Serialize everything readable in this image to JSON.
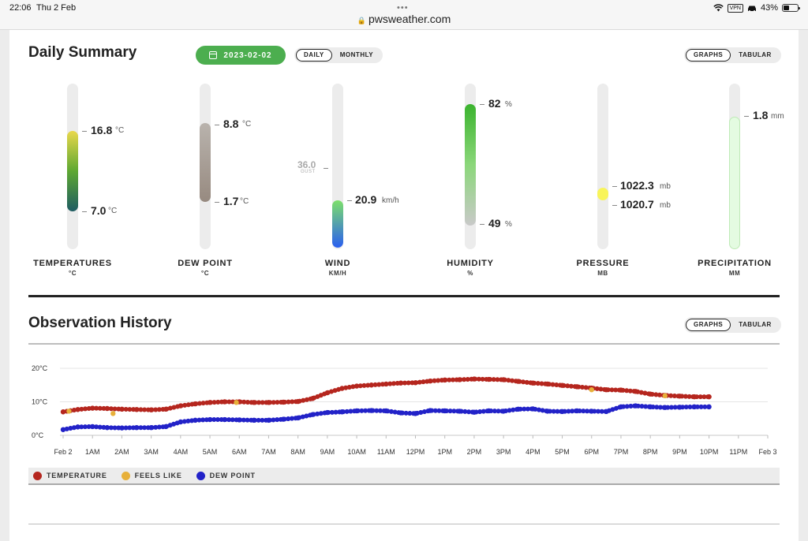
{
  "status_bar": {
    "time": "22:06",
    "date": "Thu 2 Feb",
    "dots": "•••",
    "url": "pwsweather.com",
    "vpn": "VPN",
    "battery": "43%",
    "battery_level": 0.43
  },
  "daily_summary": {
    "title": "Daily Summary",
    "date": "2023-02-02",
    "period_tabs": [
      "DAILY",
      "MONTHLY"
    ],
    "active_period": "DAILY",
    "view_tabs": [
      "GRAPHS",
      "TABULAR"
    ],
    "active_view": "GRAPHS",
    "gauges": {
      "temperature": {
        "label": "TEMPERATURES",
        "unit_label": "°C",
        "high": "16.8",
        "low": "7.0",
        "unit": "°C",
        "colors": [
          "#e9d84c",
          "#5ea832",
          "#1e5c62"
        ]
      },
      "dew_point": {
        "label": "DEW POINT",
        "unit_label": "°C",
        "high": "8.8",
        "low": "1.7",
        "unit": "°C",
        "colors": [
          "#b9b3ad",
          "#978a80"
        ]
      },
      "wind": {
        "label": "WIND",
        "unit_label": "KM/H",
        "gust": "36.0",
        "gust_label": "GUST",
        "value": "20.9",
        "unit": "km/h",
        "colors": [
          "#7de06a",
          "#2a5ff0"
        ]
      },
      "humidity": {
        "label": "HUMIDITY",
        "unit_label": "%",
        "high": "82",
        "low": "49",
        "unit": "%",
        "colors": [
          "#3bb32e",
          "#8bd77a",
          "#c9c9c9"
        ]
      },
      "pressure": {
        "label": "PRESSURE",
        "unit_label": "MB",
        "high": "1022.3",
        "low": "1020.7",
        "unit": "mb",
        "colors": [
          "#f8f45a"
        ]
      },
      "precipitation": {
        "label": "PRECIPITATION",
        "unit_label": "MM",
        "value": "1.8",
        "unit": "mm",
        "colors": [
          "#e4fbe1"
        ]
      }
    }
  },
  "observation_history": {
    "title": "Observation History",
    "view_tabs": [
      "GRAPHS",
      "TABULAR"
    ],
    "active_view": "GRAPHS",
    "legend": [
      {
        "name": "TEMPERATURE",
        "color": "#b5261e"
      },
      {
        "name": "FEELS LIKE",
        "color": "#e7b03a"
      },
      {
        "name": "DEW POINT",
        "color": "#2222c8"
      }
    ]
  },
  "chart_data": {
    "type": "scatter",
    "ylim": [
      0,
      20
    ],
    "y_ticks": [
      "0°C",
      "10°C",
      "20°C"
    ],
    "x_ticks": [
      "Feb 2",
      "1AM",
      "2AM",
      "3AM",
      "4AM",
      "5AM",
      "6AM",
      "7AM",
      "8AM",
      "9AM",
      "10AM",
      "11AM",
      "12PM",
      "1PM",
      "2PM",
      "3PM",
      "4PM",
      "5PM",
      "6PM",
      "7PM",
      "8PM",
      "9PM",
      "10PM",
      "11PM",
      "Feb 3"
    ],
    "x_range_hours": [
      0,
      24
    ],
    "series": [
      {
        "name": "TEMPERATURE",
        "color": "#b5261e",
        "x": [
          0,
          0.5,
          1,
          1.5,
          2,
          2.5,
          3,
          3.5,
          4,
          4.5,
          5,
          5.5,
          6,
          6.5,
          7,
          7.5,
          8,
          8.5,
          9,
          9.5,
          10,
          10.5,
          11,
          11.5,
          12,
          12.5,
          13,
          13.5,
          14,
          14.5,
          15,
          15.5,
          16,
          16.5,
          17,
          17.5,
          18,
          18.5,
          19,
          19.5,
          20,
          20.5,
          21,
          21.5,
          22
        ],
        "y": [
          7.0,
          7.7,
          8.1,
          8.0,
          7.8,
          7.7,
          7.6,
          7.8,
          8.8,
          9.4,
          9.8,
          10.0,
          10.0,
          9.8,
          9.8,
          9.9,
          10.1,
          11.0,
          12.7,
          14.0,
          14.7,
          15.0,
          15.3,
          15.6,
          15.7,
          16.2,
          16.5,
          16.6,
          16.8,
          16.7,
          16.6,
          16.1,
          15.6,
          15.3,
          14.9,
          14.5,
          14.1,
          13.6,
          13.5,
          13.1,
          12.3,
          11.9,
          11.7,
          11.5,
          11.5
        ]
      },
      {
        "name": "FEELS LIKE",
        "color": "#e7b03a",
        "x": [
          0.2,
          1.7,
          5.9,
          18.0,
          20.5
        ],
        "y": [
          7.2,
          6.5,
          9.8,
          13.6,
          11.8
        ]
      },
      {
        "name": "DEW POINT",
        "color": "#2222c8",
        "x": [
          0,
          0.5,
          1,
          1.5,
          2,
          2.5,
          3,
          3.5,
          4,
          4.5,
          5,
          5.5,
          6,
          6.5,
          7,
          7.5,
          8,
          8.5,
          9,
          9.5,
          10,
          10.5,
          11,
          11.5,
          12,
          12.5,
          13,
          13.5,
          14,
          14.5,
          15,
          15.5,
          16,
          16.5,
          17,
          17.5,
          18,
          18.5,
          19,
          19.5,
          20,
          20.5,
          21,
          21.5,
          22
        ],
        "y": [
          1.7,
          2.5,
          2.6,
          2.3,
          2.2,
          2.3,
          2.3,
          2.6,
          4.0,
          4.5,
          4.7,
          4.7,
          4.6,
          4.5,
          4.5,
          4.8,
          5.2,
          6.2,
          6.8,
          7.0,
          7.3,
          7.4,
          7.3,
          6.7,
          6.5,
          7.4,
          7.3,
          7.2,
          6.9,
          7.3,
          7.2,
          7.8,
          7.9,
          7.2,
          7.1,
          7.3,
          7.2,
          7.1,
          8.5,
          8.8,
          8.5,
          8.3,
          8.4,
          8.5,
          8.5
        ]
      }
    ]
  }
}
